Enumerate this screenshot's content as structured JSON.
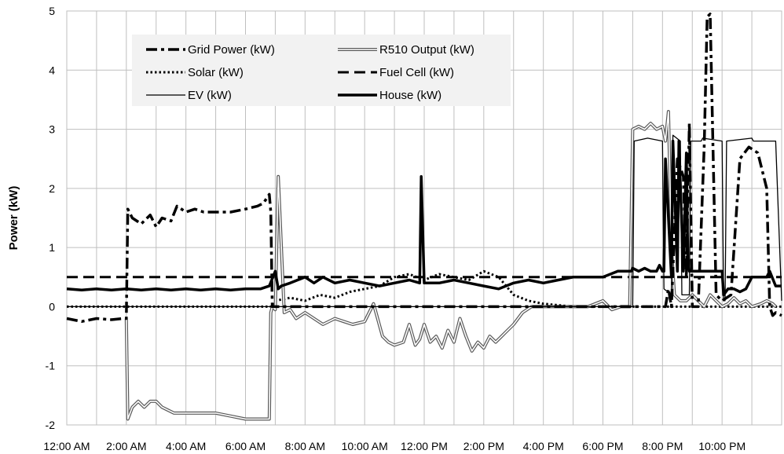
{
  "chart_data": {
    "type": "line",
    "title": "",
    "xlabel": "",
    "ylabel": "Power (kW)",
    "ylim": [
      -2,
      5
    ],
    "yticks": [
      "5",
      "4",
      "3",
      "2",
      "1",
      "0",
      "-1",
      "-2"
    ],
    "xlim_hours": [
      0,
      24
    ],
    "xticks": [
      "12:00 AM",
      "2:00 AM",
      "4:00 AM",
      "6:00 AM",
      "8:00 AM",
      "10:00 AM",
      "12:00 PM",
      "2:00 PM",
      "4:00 PM",
      "6:00 PM",
      "8:00 PM",
      "10:00 PM"
    ],
    "grid": true,
    "legend_position": "top-left",
    "legend": [
      "Grid Power (kW)",
      "R510 Output (kW)",
      "Solar (kW)",
      "Fuel Cell (kW)",
      "EV (kW)",
      "House (kW)"
    ],
    "series": [
      {
        "name": "Grid Power (kW)",
        "style": "dash-dot",
        "x": [
          0,
          0.5,
          1,
          1.5,
          1.9,
          2.0,
          2.05,
          2.2,
          2.5,
          2.8,
          3.0,
          3.2,
          3.5,
          3.7,
          4.0,
          4.3,
          4.6,
          5.0,
          5.5,
          6.0,
          6.4,
          6.6,
          6.8,
          6.85,
          6.9,
          7.5,
          8.0,
          9.0,
          10.0,
          11.0,
          11.5,
          11.8,
          11.9,
          12.0,
          12.1,
          13.0,
          14.0,
          15.0,
          16.0,
          17.0,
          18.0,
          18.9,
          19.0,
          19.5,
          19.9,
          20.0,
          20.1,
          20.2,
          20.3,
          20.5,
          20.7,
          20.8,
          20.9,
          21.0,
          21.2,
          21.4,
          21.5,
          21.6,
          21.8,
          22.0,
          22.3,
          22.6,
          22.9,
          23.2,
          23.5,
          23.6,
          23.7,
          23.8,
          24.0
        ],
        "y": [
          -0.2,
          -0.25,
          -0.2,
          -0.22,
          -0.2,
          -0.2,
          1.65,
          1.5,
          1.4,
          1.55,
          1.35,
          1.5,
          1.45,
          1.7,
          1.6,
          1.65,
          1.6,
          1.6,
          1.6,
          1.65,
          1.7,
          1.75,
          1.9,
          1.6,
          0.0,
          0.0,
          0.0,
          0.0,
          0.0,
          0.0,
          0.0,
          0.0,
          0.0,
          0.0,
          0.0,
          0.0,
          0.0,
          0.0,
          0.0,
          0.0,
          0.0,
          0.0,
          0.0,
          0.0,
          0.0,
          0.0,
          0.0,
          0.3,
          0.0,
          2.5,
          2.2,
          0.5,
          3.1,
          0.0,
          0.0,
          2.7,
          4.9,
          4.95,
          0.2,
          0.1,
          0.2,
          2.5,
          2.7,
          2.6,
          2.0,
          0.0,
          -0.15,
          -0.1,
          -0.15
        ]
      },
      {
        "name": "R510 Output (kW)",
        "style": "double-line",
        "x": [
          2.0,
          2.05,
          2.2,
          2.4,
          2.6,
          2.8,
          3.0,
          3.2,
          3.4,
          3.6,
          3.8,
          4.0,
          4.5,
          5.0,
          5.5,
          6.0,
          6.4,
          6.8,
          6.85,
          6.9,
          7.0,
          7.1,
          7.3,
          7.5,
          7.7,
          8.0,
          8.3,
          8.6,
          9.0,
          9.3,
          9.6,
          10.0,
          10.3,
          10.6,
          10.8,
          11.0,
          11.3,
          11.5,
          11.7,
          11.85,
          12.0,
          12.2,
          12.4,
          12.6,
          12.8,
          13.0,
          13.2,
          13.4,
          13.6,
          13.8,
          14.0,
          14.2,
          14.4,
          14.6,
          14.8,
          15.0,
          15.3,
          15.6,
          16.0,
          16.5,
          17.0,
          17.5,
          18.0,
          18.3,
          18.6,
          18.9,
          19.0,
          19.2,
          19.4,
          19.6,
          19.8,
          20.0,
          20.1,
          20.2,
          20.3,
          20.4,
          20.6,
          20.8,
          21.0,
          21.2,
          21.4,
          21.6,
          21.8,
          22.0,
          22.2,
          22.4,
          22.6,
          22.8,
          23.0,
          23.3,
          23.5,
          23.7,
          23.8
        ],
        "y": [
          -0.2,
          -1.9,
          -1.7,
          -1.6,
          -1.7,
          -1.6,
          -1.6,
          -1.7,
          -1.75,
          -1.8,
          -1.8,
          -1.8,
          -1.8,
          -1.8,
          -1.85,
          -1.9,
          -1.9,
          -1.9,
          -0.1,
          0.0,
          -0.05,
          2.2,
          -0.1,
          -0.05,
          -0.2,
          -0.1,
          -0.2,
          -0.3,
          -0.2,
          -0.25,
          -0.3,
          -0.25,
          0.05,
          -0.5,
          -0.6,
          -0.65,
          -0.6,
          -0.3,
          -0.65,
          -0.55,
          -0.3,
          -0.6,
          -0.5,
          -0.7,
          -0.4,
          -0.6,
          -0.2,
          -0.5,
          -0.75,
          -0.6,
          -0.7,
          -0.5,
          -0.6,
          -0.5,
          -0.4,
          -0.3,
          -0.1,
          0.0,
          0.0,
          0.0,
          0.0,
          0.0,
          0.1,
          -0.05,
          0.0,
          0.0,
          3.0,
          3.05,
          3.0,
          3.1,
          3.0,
          3.05,
          2.8,
          3.3,
          1.0,
          0.2,
          0.1,
          0.1,
          0.2,
          0.1,
          0.0,
          0.2,
          0.1,
          0.0,
          0.05,
          0.15,
          0.05,
          0.1,
          0.0,
          0.05,
          0.1,
          0.05,
          0.0
        ]
      },
      {
        "name": "Solar (kW)",
        "style": "dotted",
        "x": [
          0,
          1,
          2,
          3,
          4,
          5,
          6,
          6.9,
          7.0,
          7.5,
          8.0,
          8.5,
          9.0,
          9.5,
          10.0,
          10.5,
          11.0,
          11.5,
          12.0,
          12.5,
          13.0,
          13.5,
          14.0,
          14.5,
          15.0,
          15.5,
          16.0,
          17.0,
          18.0,
          19.0,
          20.0,
          21.0,
          22.0,
          23.0,
          24.0
        ],
        "y": [
          0,
          0,
          0,
          0,
          0,
          0,
          0,
          0,
          0.1,
          0.15,
          0.1,
          0.2,
          0.15,
          0.25,
          0.3,
          0.35,
          0.5,
          0.55,
          0.45,
          0.55,
          0.5,
          0.45,
          0.6,
          0.5,
          0.2,
          0.1,
          0.05,
          0,
          0,
          0,
          0,
          0,
          0,
          0,
          0
        ]
      },
      {
        "name": "Fuel Cell (kW)",
        "style": "dashed",
        "x": [
          0,
          24
        ],
        "y": [
          0.5,
          0.5
        ]
      },
      {
        "name": "EV (kW)",
        "style": "thin",
        "x": [
          0,
          19.0,
          19.05,
          19.5,
          20.0,
          20.05,
          20.3,
          20.35,
          20.6,
          20.65,
          20.9,
          20.95,
          21.3,
          21.35,
          22.0,
          22.05,
          22.1,
          22.15,
          23.0,
          23.05,
          23.8,
          24.0
        ],
        "y": [
          0,
          0,
          2.8,
          2.85,
          2.8,
          0.3,
          0.2,
          2.9,
          2.8,
          0.2,
          0.2,
          2.8,
          2.8,
          2.85,
          2.8,
          0.1,
          0.1,
          2.8,
          2.85,
          2.8,
          2.8,
          0.1
        ]
      },
      {
        "name": "House (kW)",
        "style": "thick",
        "x": [
          0,
          0.5,
          1.0,
          1.5,
          2.0,
          2.5,
          3.0,
          3.5,
          4.0,
          4.5,
          5.0,
          5.5,
          6.0,
          6.5,
          6.8,
          7.0,
          7.1,
          7.2,
          7.5,
          8.0,
          8.3,
          8.6,
          9.0,
          9.5,
          10.0,
          10.5,
          11.0,
          11.5,
          11.85,
          11.9,
          12.0,
          12.5,
          13.0,
          13.5,
          14.0,
          14.5,
          15.0,
          15.5,
          16.0,
          16.5,
          17.0,
          17.5,
          18.0,
          18.5,
          18.95,
          19.0,
          19.2,
          19.4,
          19.6,
          19.8,
          19.9,
          20.0,
          20.05,
          20.1,
          20.3,
          20.35,
          20.5,
          20.55,
          20.7,
          20.8,
          20.85,
          20.9,
          21.0,
          21.2,
          21.4,
          21.6,
          21.8,
          22.0,
          22.05,
          22.2,
          22.4,
          22.6,
          22.8,
          23.0,
          23.3,
          23.5,
          23.6,
          23.8,
          24.0
        ],
        "y": [
          0.3,
          0.28,
          0.3,
          0.28,
          0.3,
          0.28,
          0.3,
          0.28,
          0.3,
          0.28,
          0.3,
          0.28,
          0.3,
          0.3,
          0.35,
          0.6,
          0.3,
          0.35,
          0.4,
          0.5,
          0.4,
          0.5,
          0.4,
          0.45,
          0.4,
          0.35,
          0.4,
          0.45,
          0.4,
          2.2,
          0.4,
          0.4,
          0.45,
          0.4,
          0.35,
          0.3,
          0.4,
          0.45,
          0.4,
          0.45,
          0.5,
          0.5,
          0.5,
          0.6,
          0.6,
          0.65,
          0.6,
          0.65,
          0.6,
          0.6,
          0.7,
          0.6,
          0.6,
          2.5,
          0.5,
          2.8,
          0.6,
          2.8,
          0.6,
          2.6,
          0.8,
          0.6,
          0.6,
          0.6,
          0.6,
          0.6,
          0.6,
          0.6,
          0.2,
          0.3,
          0.3,
          0.25,
          0.3,
          0.5,
          0.5,
          0.5,
          0.6,
          0.35,
          0.35
        ]
      }
    ]
  }
}
